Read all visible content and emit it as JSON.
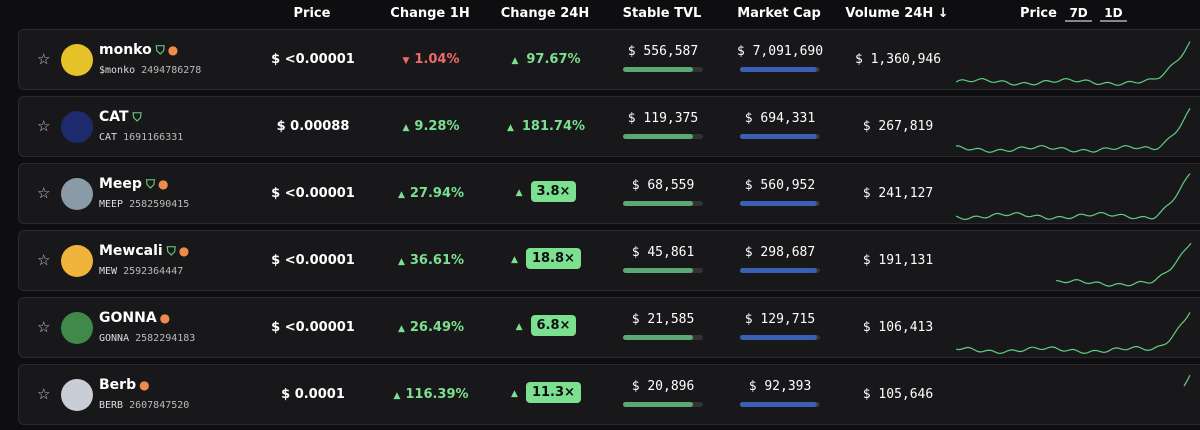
{
  "header": {
    "price": "Price",
    "change_1h": "Change 1H",
    "change_24h": "Change 24H",
    "stable_tvl": "Stable TVL",
    "market_cap": "Market Cap",
    "volume_24h": "Volume 24H ↓",
    "chart": "Price",
    "tabs": [
      "7D",
      "1D"
    ]
  },
  "rows": [
    {
      "name": "monko",
      "ticker": "$monko",
      "id": "2494786278",
      "verified": true,
      "dev": true,
      "avatar": "#e6c229",
      "price": "$ <0.00001",
      "change_1h": "1.04%",
      "change_1h_dir": "down",
      "change_24h": "97.67%",
      "change_24h_badge": false,
      "stable_tvl": "$ 556,587",
      "market_cap": "$ 7,091,690",
      "volume_24h": "$ 1,360,946"
    },
    {
      "name": "CAT",
      "ticker": "CAT",
      "id": "1691166331",
      "verified": true,
      "dev": false,
      "avatar": "#1d2a6b",
      "price": "$ 0.00088",
      "change_1h": "9.28%",
      "change_1h_dir": "up",
      "change_24h": "181.74%",
      "change_24h_badge": false,
      "stable_tvl": "$ 119,375",
      "market_cap": "$ 694,331",
      "volume_24h": "$ 267,819"
    },
    {
      "name": "Meep",
      "ticker": "MEEP",
      "id": "2582590415",
      "verified": true,
      "dev": true,
      "avatar": "#8a9aa6",
      "price": "$ <0.00001",
      "change_1h": "27.94%",
      "change_1h_dir": "up",
      "change_24h": "3.8×",
      "change_24h_badge": true,
      "stable_tvl": "$ 68,559",
      "market_cap": "$ 560,952",
      "volume_24h": "$ 241,127"
    },
    {
      "name": "Mewcali",
      "ticker": "MEW",
      "id": "2592364447",
      "verified": true,
      "dev": true,
      "avatar": "#f0b43c",
      "price": "$ <0.00001",
      "change_1h": "36.61%",
      "change_1h_dir": "up",
      "change_24h": "18.8×",
      "change_24h_badge": true,
      "stable_tvl": "$ 45,861",
      "market_cap": "$ 298,687",
      "volume_24h": "$ 191,131"
    },
    {
      "name": "GONNA",
      "ticker": "GONNA",
      "id": "2582294183",
      "verified": false,
      "dev": true,
      "avatar": "#3f8a4a",
      "price": "$ <0.00001",
      "change_1h": "26.49%",
      "change_1h_dir": "up",
      "change_24h": "6.8×",
      "change_24h_badge": true,
      "stable_tvl": "$ 21,585",
      "market_cap": "$ 129,715",
      "volume_24h": "$ 106,413"
    },
    {
      "name": "Berb",
      "ticker": "BERB",
      "id": "2607847520",
      "verified": false,
      "dev": true,
      "avatar": "#c9ced6",
      "price": "$ 0.0001",
      "change_1h": "116.39%",
      "change_1h_dir": "up",
      "change_24h": "11.3×",
      "change_24h_badge": true,
      "stable_tvl": "$ 20,896",
      "market_cap": "$ 92,393",
      "volume_24h": "$ 105,646"
    }
  ]
}
